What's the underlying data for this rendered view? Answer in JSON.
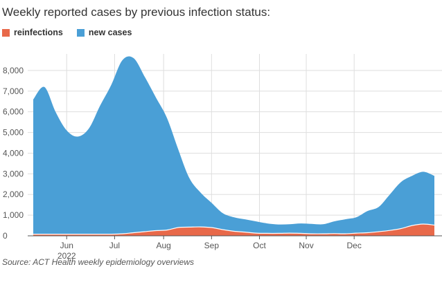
{
  "chart_data": {
    "type": "area",
    "title": "Weekly reported cases by previous infection status:",
    "source": "Source: ACT Health weekly epidemiology overviews",
    "series": [
      {
        "name": "reinfections",
        "color": "#e8694a",
        "values": [
          80,
          80,
          80,
          80,
          80,
          80,
          80,
          80,
          100,
          150,
          200,
          250,
          280,
          400,
          420,
          430,
          400,
          300,
          220,
          180,
          130,
          120,
          120,
          130,
          120,
          100,
          100,
          110,
          100,
          130,
          150,
          200,
          260,
          350,
          500,
          570,
          520
        ]
      },
      {
        "name": "new cases",
        "color": "#4a9fd6",
        "values": [
          6600,
          7200,
          6000,
          5100,
          4800,
          5200,
          6300,
          7300,
          8500,
          8600,
          7700,
          6700,
          5700,
          4200,
          2800,
          2100,
          1600,
          1100,
          900,
          800,
          700,
          600,
          550,
          560,
          600,
          580,
          560,
          700,
          800,
          900,
          1200,
          1400,
          2000,
          2600,
          2900,
          3100,
          2900
        ]
      }
    ],
    "x_ticks": [
      {
        "label": "Jun",
        "sub": "2022",
        "index": 3
      },
      {
        "label": "Jul",
        "index": 7.3
      },
      {
        "label": "Aug",
        "index": 11.7
      },
      {
        "label": "Sep",
        "index": 16
      },
      {
        "label": "Oct",
        "index": 20.3
      },
      {
        "label": "Nov",
        "index": 24.5
      },
      {
        "label": "Dec",
        "index": 28.8
      }
    ],
    "y_ticks": [
      0,
      1000,
      2000,
      3000,
      4000,
      5000,
      6000,
      7000,
      8000
    ],
    "y_tick_labels": [
      "0",
      "1,000",
      "2,000",
      "3,000",
      "4,000",
      "5,000",
      "6,000",
      "7,000",
      "8,000"
    ],
    "ylim": [
      0,
      8800
    ],
    "grid": true
  }
}
